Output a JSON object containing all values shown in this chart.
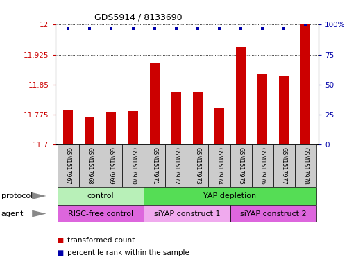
{
  "title": "GDS5914 / 8133690",
  "samples": [
    "GSM1517967",
    "GSM1517968",
    "GSM1517969",
    "GSM1517970",
    "GSM1517971",
    "GSM1517972",
    "GSM1517973",
    "GSM1517974",
    "GSM1517975",
    "GSM1517976",
    "GSM1517977",
    "GSM1517978"
  ],
  "bar_values": [
    11.786,
    11.77,
    11.782,
    11.783,
    11.906,
    11.831,
    11.833,
    11.793,
    11.944,
    11.875,
    11.87,
    12.0
  ],
  "percentile_values": [
    97,
    97,
    97,
    97,
    97,
    97,
    97,
    97,
    97,
    97,
    97,
    100
  ],
  "bar_color": "#cc0000",
  "percentile_color": "#0000aa",
  "ylim_left": [
    11.7,
    12.0
  ],
  "yticks_left": [
    11.7,
    11.775,
    11.85,
    11.925,
    12.0
  ],
  "ytick_labels_left": [
    "11.7",
    "11.775",
    "11.85",
    "11.925",
    "12"
  ],
  "ylim_right": [
    0,
    100
  ],
  "yticks_right": [
    0,
    25,
    50,
    75,
    100
  ],
  "ytick_labels_right": [
    "0",
    "25",
    "50",
    "75",
    "100%"
  ],
  "protocol_groups": [
    {
      "label": "control",
      "start": 0,
      "end": 3,
      "color": "#b8f0b8"
    },
    {
      "label": "YAP depletion",
      "start": 4,
      "end": 11,
      "color": "#55dd55"
    }
  ],
  "agent_groups": [
    {
      "label": "RISC-free control",
      "start": 0,
      "end": 3,
      "color": "#dd66dd"
    },
    {
      "label": "siYAP construct 1",
      "start": 4,
      "end": 7,
      "color": "#f0aaee"
    },
    {
      "label": "siYAP construct 2",
      "start": 8,
      "end": 11,
      "color": "#dd66dd"
    }
  ],
  "legend_items": [
    {
      "label": "transformed count",
      "color": "#cc0000"
    },
    {
      "label": "percentile rank within the sample",
      "color": "#0000aa"
    }
  ],
  "background_color": "#ffffff",
  "sample_box_color": "#cccccc",
  "bar_width": 0.45
}
